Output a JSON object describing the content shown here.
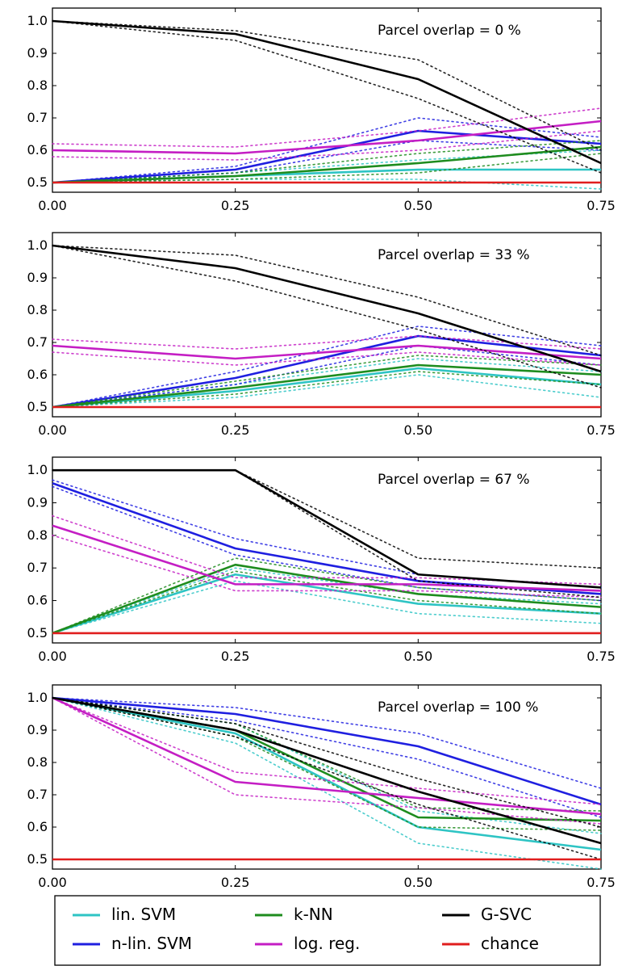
{
  "chart_data": [
    {
      "type": "line",
      "annotation": "Parcel overlap = 0 %",
      "x": [
        0.0,
        0.25,
        0.5,
        0.75
      ],
      "xticks": [
        "0.00",
        "0.25",
        "0.50",
        "0.75"
      ],
      "yticks": [
        "0.5",
        "0.6",
        "0.7",
        "0.8",
        "0.9",
        "1.0"
      ],
      "xlim": [
        0.0,
        0.75
      ],
      "ylim": [
        0.47,
        1.04
      ],
      "series": [
        {
          "name": "lin. SVM",
          "color": "#2ec4c4",
          "values": [
            0.5,
            0.52,
            0.54,
            0.54
          ],
          "lower": [
            0.5,
            0.51,
            0.51,
            0.48
          ],
          "upper": [
            0.5,
            0.53,
            0.57,
            0.6
          ]
        },
        {
          "name": "n-lin. SVM",
          "color": "#1f1fe0",
          "values": [
            0.5,
            0.54,
            0.66,
            0.62
          ],
          "lower": [
            0.5,
            0.53,
            0.63,
            0.6
          ],
          "upper": [
            0.5,
            0.55,
            0.7,
            0.64
          ]
        },
        {
          "name": "k-NN",
          "color": "#1e8c1e",
          "values": [
            0.5,
            0.52,
            0.56,
            0.61
          ],
          "lower": [
            0.5,
            0.51,
            0.53,
            0.59
          ],
          "upper": [
            0.5,
            0.53,
            0.59,
            0.63
          ]
        },
        {
          "name": "log. reg.",
          "color": "#c41ec4",
          "values": [
            0.6,
            0.59,
            0.63,
            0.69
          ],
          "lower": [
            0.58,
            0.57,
            0.6,
            0.66
          ],
          "upper": [
            0.62,
            0.61,
            0.66,
            0.73
          ]
        },
        {
          "name": "G-SVC",
          "color": "#000000",
          "values": [
            1.0,
            0.96,
            0.82,
            0.56
          ],
          "lower": [
            1.0,
            0.94,
            0.76,
            0.53
          ],
          "upper": [
            1.0,
            0.97,
            0.88,
            0.6
          ]
        },
        {
          "name": "chance",
          "color": "#e01e1e",
          "values": [
            0.5,
            0.5,
            0.5,
            0.5
          ]
        }
      ]
    },
    {
      "type": "line",
      "annotation": "Parcel overlap = 33 %",
      "x": [
        0.0,
        0.25,
        0.5,
        0.75
      ],
      "xticks": [
        "0.00",
        "0.25",
        "0.50",
        "0.75"
      ],
      "yticks": [
        "0.5",
        "0.6",
        "0.7",
        "0.8",
        "0.9",
        "1.0"
      ],
      "xlim": [
        0.0,
        0.75
      ],
      "ylim": [
        0.47,
        1.04
      ],
      "series": [
        {
          "name": "lin. SVM",
          "color": "#2ec4c4",
          "values": [
            0.5,
            0.55,
            0.62,
            0.57
          ],
          "lower": [
            0.5,
            0.53,
            0.6,
            0.53
          ],
          "upper": [
            0.5,
            0.57,
            0.65,
            0.61
          ]
        },
        {
          "name": "n-lin. SVM",
          "color": "#1f1fe0",
          "values": [
            0.5,
            0.59,
            0.72,
            0.66
          ],
          "lower": [
            0.5,
            0.57,
            0.69,
            0.63
          ],
          "upper": [
            0.5,
            0.61,
            0.75,
            0.69
          ]
        },
        {
          "name": "k-NN",
          "color": "#1e8c1e",
          "values": [
            0.5,
            0.56,
            0.63,
            0.6
          ],
          "lower": [
            0.5,
            0.54,
            0.61,
            0.57
          ],
          "upper": [
            0.5,
            0.58,
            0.66,
            0.63
          ]
        },
        {
          "name": "log. reg.",
          "color": "#c41ec4",
          "values": [
            0.69,
            0.65,
            0.69,
            0.65
          ],
          "lower": [
            0.67,
            0.63,
            0.67,
            0.63
          ],
          "upper": [
            0.71,
            0.68,
            0.72,
            0.68
          ]
        },
        {
          "name": "G-SVC",
          "color": "#000000",
          "values": [
            1.0,
            0.93,
            0.79,
            0.61
          ],
          "lower": [
            1.0,
            0.89,
            0.74,
            0.56
          ],
          "upper": [
            1.0,
            0.97,
            0.84,
            0.66
          ]
        },
        {
          "name": "chance",
          "color": "#e01e1e",
          "values": [
            0.5,
            0.5,
            0.5,
            0.5
          ]
        }
      ]
    },
    {
      "type": "line",
      "annotation": "Parcel overlap = 67 %",
      "x": [
        0.0,
        0.25,
        0.5,
        0.75
      ],
      "xticks": [
        "0.00",
        "0.25",
        "0.50",
        "0.75"
      ],
      "yticks": [
        "0.5",
        "0.6",
        "0.7",
        "0.8",
        "0.9",
        "1.0"
      ],
      "xlim": [
        0.0,
        0.75
      ],
      "ylim": [
        0.47,
        1.04
      ],
      "series": [
        {
          "name": "lin. SVM",
          "color": "#2ec4c4",
          "values": [
            0.5,
            0.68,
            0.59,
            0.56
          ],
          "lower": [
            0.5,
            0.66,
            0.56,
            0.53
          ],
          "upper": [
            0.5,
            0.7,
            0.62,
            0.59
          ]
        },
        {
          "name": "n-lin. SVM",
          "color": "#1f1fe0",
          "values": [
            0.96,
            0.76,
            0.66,
            0.62
          ],
          "lower": [
            0.95,
            0.74,
            0.64,
            0.6
          ],
          "upper": [
            0.97,
            0.79,
            0.68,
            0.64
          ]
        },
        {
          "name": "k-NN",
          "color": "#1e8c1e",
          "values": [
            0.5,
            0.71,
            0.62,
            0.58
          ],
          "lower": [
            0.5,
            0.69,
            0.6,
            0.56
          ],
          "upper": [
            0.5,
            0.73,
            0.64,
            0.6
          ]
        },
        {
          "name": "log. reg.",
          "color": "#c41ec4",
          "values": [
            0.83,
            0.65,
            0.65,
            0.63
          ],
          "lower": [
            0.8,
            0.63,
            0.63,
            0.61
          ],
          "upper": [
            0.86,
            0.67,
            0.67,
            0.65
          ]
        },
        {
          "name": "G-SVC",
          "color": "#000000",
          "values": [
            1.0,
            1.0,
            0.68,
            0.64
          ],
          "lower": [
            1.0,
            1.0,
            0.66,
            0.61
          ],
          "upper": [
            1.0,
            1.0,
            0.73,
            0.7
          ]
        },
        {
          "name": "chance",
          "color": "#e01e1e",
          "values": [
            0.5,
            0.5,
            0.5,
            0.5
          ]
        }
      ]
    },
    {
      "type": "line",
      "annotation": "Parcel overlap = 100 %",
      "x": [
        0.0,
        0.25,
        0.5,
        0.75
      ],
      "xticks": [
        "0.00",
        "0.25",
        "0.50",
        "0.75"
      ],
      "yticks": [
        "0.5",
        "0.6",
        "0.7",
        "0.8",
        "0.9",
        "1.0"
      ],
      "xlim": [
        0.0,
        0.75
      ],
      "ylim": [
        0.47,
        1.04
      ],
      "series": [
        {
          "name": "lin. SVM",
          "color": "#2ec4c4",
          "values": [
            1.0,
            0.89,
            0.6,
            0.53
          ],
          "lower": [
            1.0,
            0.86,
            0.55,
            0.47
          ],
          "upper": [
            1.0,
            0.92,
            0.65,
            0.58
          ]
        },
        {
          "name": "n-lin. SVM",
          "color": "#1f1fe0",
          "values": [
            1.0,
            0.95,
            0.85,
            0.67
          ],
          "lower": [
            1.0,
            0.93,
            0.81,
            0.63
          ],
          "upper": [
            1.0,
            0.97,
            0.89,
            0.72
          ]
        },
        {
          "name": "k-NN",
          "color": "#1e8c1e",
          "values": [
            1.0,
            0.9,
            0.63,
            0.62
          ],
          "lower": [
            1.0,
            0.88,
            0.6,
            0.59
          ],
          "upper": [
            1.0,
            0.92,
            0.66,
            0.65
          ]
        },
        {
          "name": "log. reg.",
          "color": "#c41ec4",
          "values": [
            1.0,
            0.74,
            0.69,
            0.64
          ],
          "lower": [
            1.0,
            0.7,
            0.66,
            0.61
          ],
          "upper": [
            1.0,
            0.77,
            0.72,
            0.67
          ]
        },
        {
          "name": "G-SVC",
          "color": "#000000",
          "values": [
            1.0,
            0.9,
            0.71,
            0.55
          ],
          "lower": [
            1.0,
            0.88,
            0.67,
            0.5
          ],
          "upper": [
            1.0,
            0.92,
            0.75,
            0.6
          ]
        },
        {
          "name": "chance",
          "color": "#e01e1e",
          "values": [
            0.5,
            0.5,
            0.5,
            0.5
          ]
        }
      ]
    }
  ],
  "legend": {
    "placement": "bottom",
    "items": [
      {
        "label": "lin. SVM",
        "color": "#2ec4c4"
      },
      {
        "label": "n-lin. SVM",
        "color": "#1f1fe0"
      },
      {
        "label": "k-NN",
        "color": "#1e8c1e"
      },
      {
        "label": "log. reg.",
        "color": "#c41ec4"
      },
      {
        "label": "G-SVC",
        "color": "#000000"
      },
      {
        "label": "chance",
        "color": "#e01e1e"
      }
    ]
  }
}
